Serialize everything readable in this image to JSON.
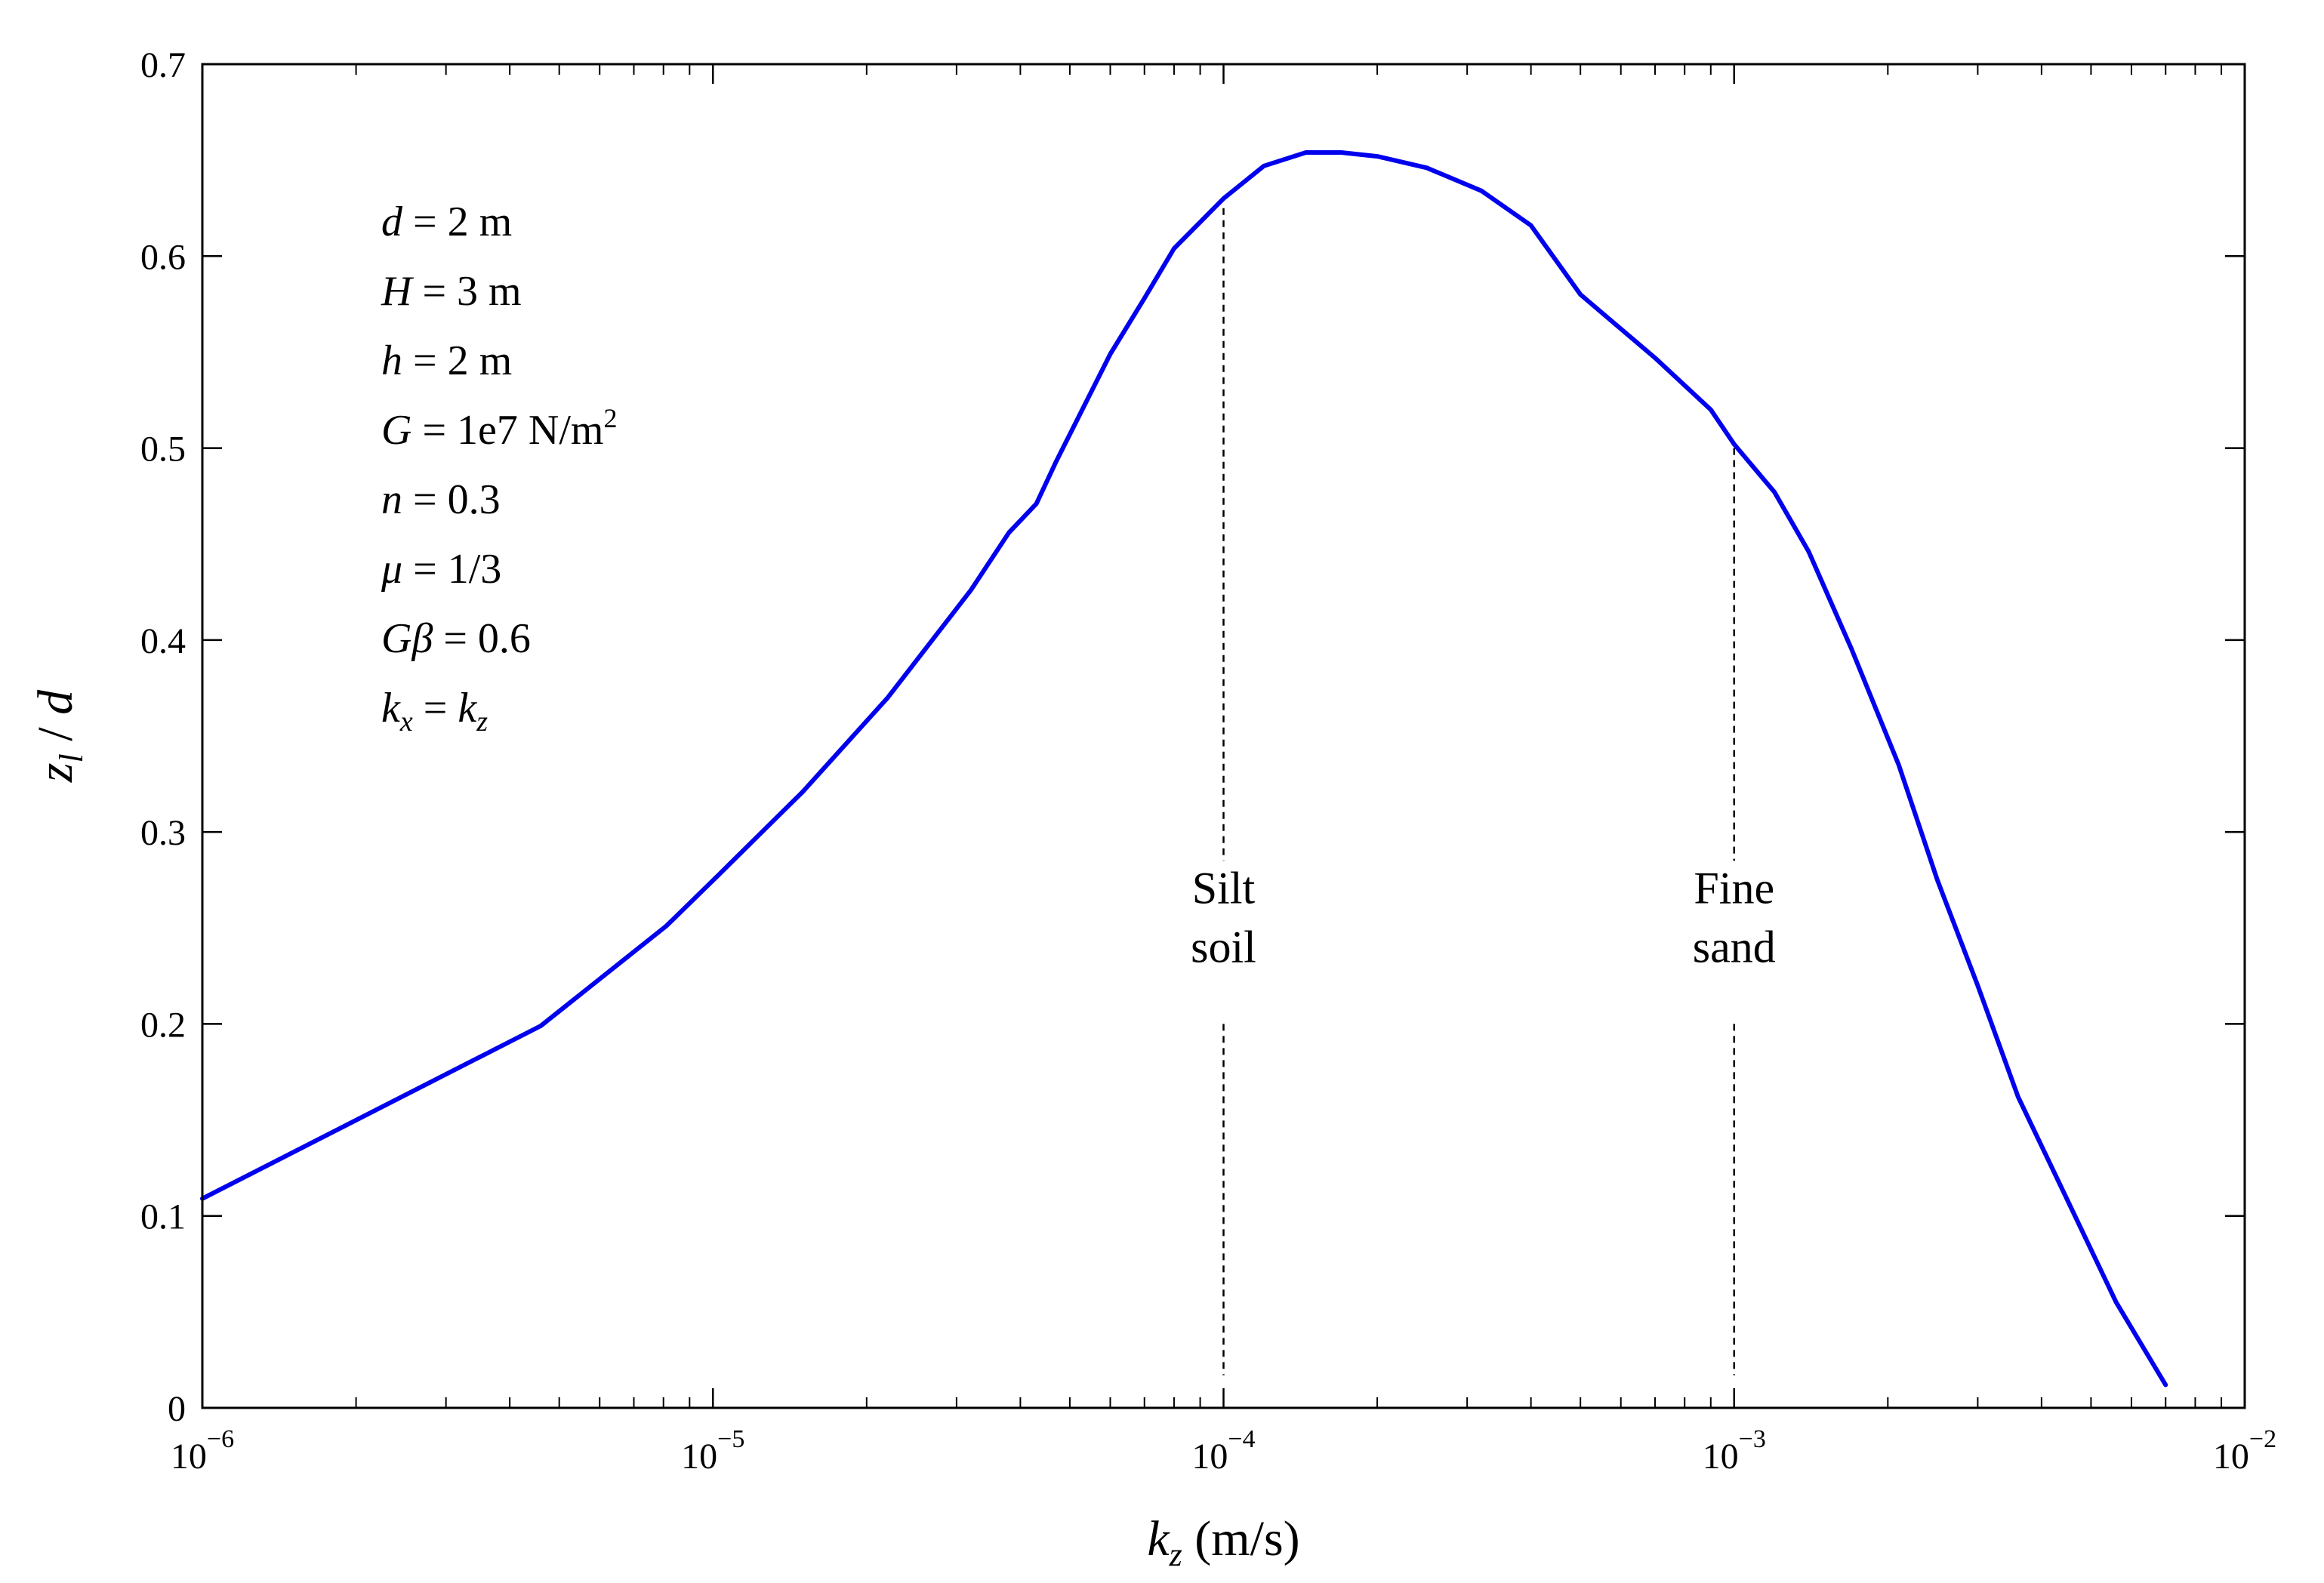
{
  "chart_data": {
    "type": "line",
    "xscale": "log",
    "xlim": [
      1e-06,
      0.01
    ],
    "ylim": [
      0,
      0.7
    ],
    "xlabel": {
      "var": "k",
      "sub": "z",
      "unit": " (m/s)"
    },
    "ylabel": {
      "var": "z",
      "sub": "l",
      "rest": " / d"
    },
    "x_ticks": [
      {
        "value": 1e-06,
        "base": "10",
        "exp": "−6"
      },
      {
        "value": 1e-05,
        "base": "10",
        "exp": "−5"
      },
      {
        "value": 0.0001,
        "base": "10",
        "exp": "−4"
      },
      {
        "value": 0.001,
        "base": "10",
        "exp": "−3"
      },
      {
        "value": 0.01,
        "base": "10",
        "exp": "−2"
      }
    ],
    "y_ticks": [
      "0",
      "0.1",
      "0.2",
      "0.3",
      "0.4",
      "0.5",
      "0.6",
      "0.7"
    ],
    "grid": false,
    "legend": "none",
    "series": [
      {
        "color": "#0000ee",
        "points": [
          [
            1e-06,
            0.109
          ],
          [
            4.6e-06,
            0.199
          ],
          [
            8.1e-06,
            0.251
          ],
          [
            1.02e-05,
            0.277
          ],
          [
            1.5e-05,
            0.321
          ],
          [
            2.2e-05,
            0.37
          ],
          [
            3.2e-05,
            0.426
          ],
          [
            3.8e-05,
            0.456
          ],
          [
            4.3e-05,
            0.471
          ],
          [
            4.7e-05,
            0.493
          ],
          [
            6e-05,
            0.549
          ],
          [
            7e-05,
            0.578
          ],
          [
            8e-05,
            0.604
          ],
          [
            0.0001,
            0.63
          ],
          [
            0.00012,
            0.647
          ],
          [
            0.000145,
            0.654
          ],
          [
            0.00017,
            0.654
          ],
          [
            0.0002,
            0.652
          ],
          [
            0.00025,
            0.646
          ],
          [
            0.00032,
            0.634
          ],
          [
            0.0004,
            0.616
          ],
          [
            0.0005,
            0.58
          ],
          [
            0.0007,
            0.547
          ],
          [
            0.0009,
            0.52
          ],
          [
            0.001,
            0.502
          ],
          [
            0.0012,
            0.477
          ],
          [
            0.0014,
            0.446
          ],
          [
            0.0017,
            0.395
          ],
          [
            0.0021,
            0.335
          ],
          [
            0.0025,
            0.275
          ],
          [
            0.003,
            0.22
          ],
          [
            0.0036,
            0.162
          ],
          [
            0.0045,
            0.108
          ],
          [
            0.0056,
            0.055
          ],
          [
            0.007,
            0.012
          ]
        ]
      }
    ],
    "reference_lines": [
      {
        "x": 0.0001,
        "y_top": 0.625,
        "label_lines": [
          "Silt",
          "soil"
        ]
      },
      {
        "x": 0.001,
        "y_top": 0.5,
        "label_lines": [
          "Fine",
          "sand"
        ]
      }
    ],
    "parameters": [
      {
        "var": "d",
        "text": " = 2 m"
      },
      {
        "var": "H",
        "text": " = 3 m"
      },
      {
        "var": "h",
        "text": " = 2 m"
      },
      {
        "var": "G",
        "text": " = 1e7 N/m",
        "sup": "2"
      },
      {
        "var": "n",
        "text": " = 0.3"
      },
      {
        "var": "μ",
        "text": " = 1/3"
      },
      {
        "var": "Gβ",
        "text": " = 0.6"
      },
      {
        "var": "k",
        "sub": "x",
        "text": " = ",
        "var2": "k",
        "sub2": "z"
      }
    ]
  }
}
